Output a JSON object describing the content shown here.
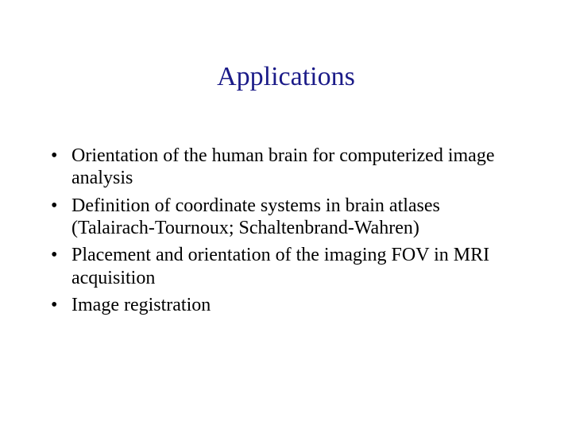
{
  "slide": {
    "title": "Applications",
    "title_color": "#1b1b88",
    "title_fontsize": 34,
    "body_fontsize": 24,
    "background_color": "#ffffff",
    "text_color": "#000000",
    "bullets": [
      "Orientation of the human brain for computerized image analysis",
      "Definition of coordinate systems in brain atlases (Talairach-Tournoux; Schaltenbrand-Wahren)",
      "Placement and orientation of the imaging FOV in MRI acquisition",
      "Image registration"
    ]
  }
}
